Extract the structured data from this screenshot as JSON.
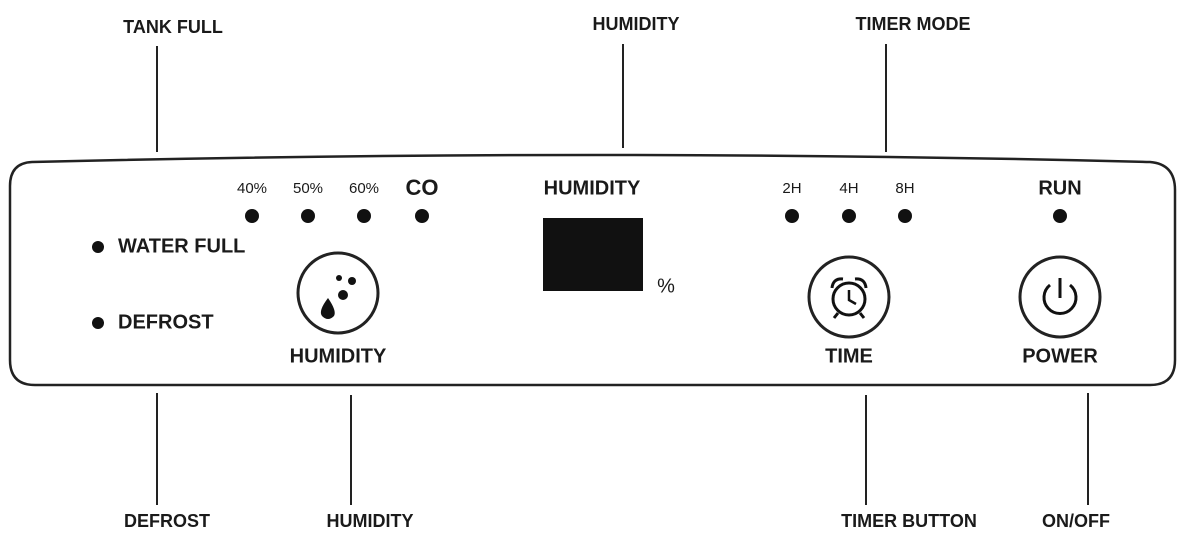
{
  "callouts": {
    "top": [
      "TANK FULL",
      "HUMIDITY",
      "TIMER MODE"
    ],
    "bottom": [
      "DEFROST",
      "HUMIDITY",
      "TIMER BUTTON",
      "ON/OFF"
    ]
  },
  "panel": {
    "humidity_levels": [
      "40%",
      "50%",
      "60%",
      "CO"
    ],
    "display": {
      "label": "HUMIDITY",
      "unit": "%"
    },
    "timer_levels": [
      "2H",
      "4H",
      "8H"
    ],
    "run": "RUN",
    "indicators": [
      "WATER FULL",
      "DEFROST"
    ],
    "buttons": [
      "HUMIDITY",
      "TIME",
      "POWER"
    ]
  }
}
